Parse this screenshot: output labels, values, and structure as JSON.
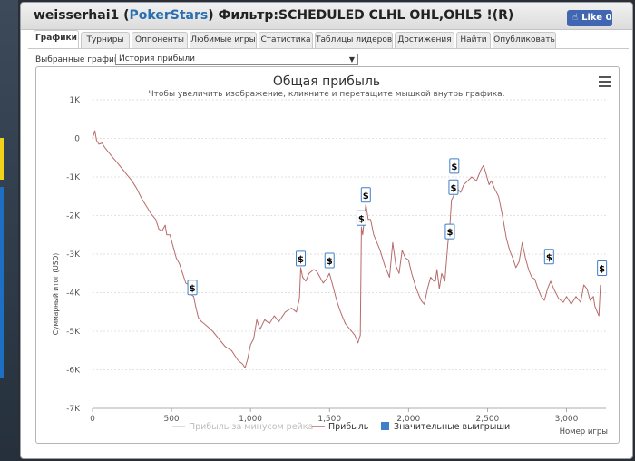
{
  "window": {
    "title_user": "weisserhai1 (",
    "title_site": "PokerStars",
    "title_rest": ") Фильтр:SCHEDULED CLHL OHL,OHL5 !(R)",
    "like_label": "Like 0"
  },
  "tabs": [
    {
      "label": "Графики",
      "active": true
    },
    {
      "label": "Турниры",
      "active": false
    },
    {
      "label": "Оппоненты",
      "active": false
    },
    {
      "label": "Любимые игры",
      "active": false
    },
    {
      "label": "Статистика",
      "active": false
    },
    {
      "label": "Таблицы лидеров",
      "active": false
    },
    {
      "label": "Достижения",
      "active": false
    },
    {
      "label": "Найти",
      "active": false
    },
    {
      "label": "Опубликовать",
      "active": false
    }
  ],
  "selector": {
    "label": "Выбранные графики:",
    "value": "История прибыли"
  },
  "chart_data": {
    "type": "line",
    "title": "Общая прибыль",
    "subtitle": "Чтобы увеличить изображение, кликните и перетащите мышкой внутрь графика.",
    "ylabel": "Суммарный итог (USD)",
    "xlabel": "Номер игры",
    "xlim": [
      0,
      3250
    ],
    "ylim": [
      -7000,
      1000
    ],
    "x_ticks": [
      0,
      500,
      1000,
      1500,
      2000,
      2500,
      3000
    ],
    "x_tick_labels": [
      "0",
      "500",
      "1,000",
      "1,500",
      "2,000",
      "2,500",
      "3,000"
    ],
    "y_ticks": [
      1000,
      0,
      -1000,
      -2000,
      -3000,
      -4000,
      -5000,
      -6000,
      -7000
    ],
    "y_tick_labels": [
      "1K",
      "0",
      "-1K",
      "-2K",
      "-3K",
      "-4K",
      "-5K",
      "-6K",
      "-7K"
    ],
    "grid": true,
    "legend_position": "bottom",
    "legend": [
      {
        "label": "Прибыль за минусом рейка",
        "color": "#d0d0d0",
        "kind": "line"
      },
      {
        "label": "Прибыль",
        "color": "#b76b6b",
        "kind": "line"
      },
      {
        "label": "Значительные выигрыши",
        "color": "#3f7fc7",
        "kind": "box"
      }
    ],
    "series": [
      {
        "name": "Прибыль",
        "color": "#b76b6b",
        "points": [
          [
            0,
            0
          ],
          [
            15,
            200
          ],
          [
            25,
            -50
          ],
          [
            40,
            -150
          ],
          [
            60,
            -120
          ],
          [
            80,
            -250
          ],
          [
            100,
            -350
          ],
          [
            130,
            -500
          ],
          [
            160,
            -650
          ],
          [
            190,
            -800
          ],
          [
            220,
            -950
          ],
          [
            250,
            -1100
          ],
          [
            280,
            -1300
          ],
          [
            310,
            -1550
          ],
          [
            340,
            -1750
          ],
          [
            370,
            -1950
          ],
          [
            400,
            -2100
          ],
          [
            420,
            -2350
          ],
          [
            440,
            -2400
          ],
          [
            460,
            -2250
          ],
          [
            470,
            -2500
          ],
          [
            490,
            -2500
          ],
          [
            510,
            -2800
          ],
          [
            530,
            -3100
          ],
          [
            550,
            -3250
          ],
          [
            570,
            -3500
          ],
          [
            590,
            -3750
          ],
          [
            610,
            -3800
          ],
          [
            625,
            -4050
          ],
          [
            640,
            -4100
          ],
          [
            655,
            -4400
          ],
          [
            670,
            -4650
          ],
          [
            690,
            -4750
          ],
          [
            720,
            -4850
          ],
          [
            760,
            -5000
          ],
          [
            800,
            -5200
          ],
          [
            840,
            -5400
          ],
          [
            880,
            -5500
          ],
          [
            920,
            -5750
          ],
          [
            950,
            -5850
          ],
          [
            965,
            -5950
          ],
          [
            980,
            -5750
          ],
          [
            1000,
            -5350
          ],
          [
            1020,
            -5200
          ],
          [
            1040,
            -4700
          ],
          [
            1060,
            -4950
          ],
          [
            1090,
            -4700
          ],
          [
            1120,
            -4800
          ],
          [
            1150,
            -4600
          ],
          [
            1180,
            -4750
          ],
          [
            1220,
            -4500
          ],
          [
            1260,
            -4400
          ],
          [
            1290,
            -4500
          ],
          [
            1310,
            -4150
          ],
          [
            1318,
            -3350
          ],
          [
            1330,
            -3600
          ],
          [
            1350,
            -3700
          ],
          [
            1370,
            -3500
          ],
          [
            1400,
            -3400
          ],
          [
            1420,
            -3450
          ],
          [
            1440,
            -3600
          ],
          [
            1460,
            -3750
          ],
          [
            1480,
            -3650
          ],
          [
            1500,
            -3500
          ],
          [
            1520,
            -3800
          ],
          [
            1545,
            -4200
          ],
          [
            1570,
            -4500
          ],
          [
            1600,
            -4800
          ],
          [
            1630,
            -4950
          ],
          [
            1660,
            -5100
          ],
          [
            1680,
            -5300
          ],
          [
            1695,
            -5100
          ],
          [
            1702,
            -2300
          ],
          [
            1710,
            -2500
          ],
          [
            1730,
            -1700
          ],
          [
            1745,
            -2100
          ],
          [
            1760,
            -2100
          ],
          [
            1780,
            -2500
          ],
          [
            1800,
            -2700
          ],
          [
            1820,
            -2900
          ],
          [
            1850,
            -3300
          ],
          [
            1880,
            -3600
          ],
          [
            1900,
            -2700
          ],
          [
            1920,
            -3300
          ],
          [
            1940,
            -3500
          ],
          [
            1960,
            -2900
          ],
          [
            1980,
            -3100
          ],
          [
            2000,
            -3150
          ],
          [
            2020,
            -3500
          ],
          [
            2050,
            -3900
          ],
          [
            2080,
            -4200
          ],
          [
            2100,
            -4300
          ],
          [
            2120,
            -3900
          ],
          [
            2140,
            -3600
          ],
          [
            2160,
            -3700
          ],
          [
            2170,
            -3700
          ],
          [
            2180,
            -3400
          ],
          [
            2195,
            -3900
          ],
          [
            2210,
            -3500
          ],
          [
            2230,
            -3700
          ],
          [
            2250,
            -2700
          ],
          [
            2262,
            -2300
          ],
          [
            2272,
            -1600
          ],
          [
            2285,
            -1500
          ],
          [
            2298,
            -1200
          ],
          [
            2310,
            -1300
          ],
          [
            2330,
            -1400
          ],
          [
            2350,
            -1200
          ],
          [
            2375,
            -1100
          ],
          [
            2400,
            -1000
          ],
          [
            2430,
            -1100
          ],
          [
            2460,
            -800
          ],
          [
            2475,
            -700
          ],
          [
            2490,
            -900
          ],
          [
            2510,
            -1200
          ],
          [
            2525,
            -1100
          ],
          [
            2545,
            -1300
          ],
          [
            2570,
            -1500
          ],
          [
            2595,
            -2000
          ],
          [
            2620,
            -2600
          ],
          [
            2640,
            -2900
          ],
          [
            2660,
            -3100
          ],
          [
            2680,
            -3350
          ],
          [
            2700,
            -3200
          ],
          [
            2720,
            -2700
          ],
          [
            2740,
            -3100
          ],
          [
            2760,
            -3400
          ],
          [
            2780,
            -3600
          ],
          [
            2800,
            -3650
          ],
          [
            2820,
            -3900
          ],
          [
            2840,
            -4100
          ],
          [
            2860,
            -4200
          ],
          [
            2880,
            -3900
          ],
          [
            2900,
            -3700
          ],
          [
            2920,
            -3900
          ],
          [
            2950,
            -4150
          ],
          [
            2980,
            -4250
          ],
          [
            3000,
            -4100
          ],
          [
            3030,
            -4300
          ],
          [
            3060,
            -4100
          ],
          [
            3090,
            -4250
          ],
          [
            3110,
            -3800
          ],
          [
            3130,
            -3900
          ],
          [
            3150,
            -4200
          ],
          [
            3170,
            -4100
          ],
          [
            3180,
            -4350
          ],
          [
            3195,
            -4500
          ],
          [
            3205,
            -4600
          ],
          [
            3215,
            -3800
          ]
        ]
      }
    ],
    "markers": [
      {
        "x": 632,
        "y": -4100,
        "label": "$"
      },
      {
        "x": 1318,
        "y": -3350,
        "label": "$"
      },
      {
        "x": 1500,
        "y": -3400,
        "label": "$"
      },
      {
        "x": 1702,
        "y": -2300,
        "label": "$"
      },
      {
        "x": 1730,
        "y": -1700,
        "label": "$"
      },
      {
        "x": 2262,
        "y": -2650,
        "label": "$"
      },
      {
        "x": 2285,
        "y": -1500,
        "label": "$"
      },
      {
        "x": 2290,
        "y": -950,
        "label": "$"
      },
      {
        "x": 2890,
        "y": -3300,
        "label": "$"
      },
      {
        "x": 3225,
        "y": -3600,
        "label": "$"
      }
    ]
  }
}
